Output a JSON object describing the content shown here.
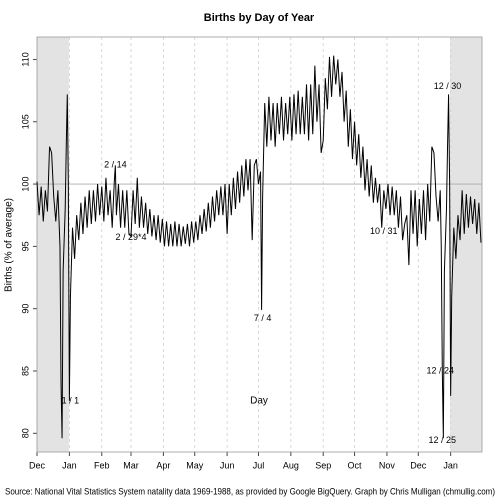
{
  "chart_data": {
    "type": "line",
    "title": "Births by Day of Year",
    "xlabel": "Day",
    "ylabel": "Births (% of average)",
    "source": "Source: National Vital Statistics System natality data 1969-1988, as provided by Google BigQuery.  Graph by Chris Mulligan (chmullig.com)",
    "color": "#000000",
    "grid": true,
    "hline": 100,
    "shaded_ranges": [
      [
        -30,
        0.5
      ],
      [
        365.5,
        396
      ]
    ],
    "xlim": [
      -30,
      396
    ],
    "ylim": [
      78.5,
      111.8
    ],
    "yticks": [
      80,
      85,
      90,
      95,
      100,
      105,
      110
    ],
    "xticks": [
      {
        "value": -30,
        "label": "Dec"
      },
      {
        "value": 1,
        "label": "Jan"
      },
      {
        "value": 32,
        "label": "Feb"
      },
      {
        "value": 60,
        "label": "Mar"
      },
      {
        "value": 91,
        "label": "Apr"
      },
      {
        "value": 121,
        "label": "May"
      },
      {
        "value": 152,
        "label": "Jun"
      },
      {
        "value": 182,
        "label": "Jul"
      },
      {
        "value": 213,
        "label": "Aug"
      },
      {
        "value": 244,
        "label": "Sep"
      },
      {
        "value": 274,
        "label": "Oct"
      },
      {
        "value": 305,
        "label": "Nov"
      },
      {
        "value": 335,
        "label": "Dec"
      },
      {
        "value": 366,
        "label": "Jan"
      }
    ],
    "x": [
      -30,
      -28,
      -26,
      -24,
      -22,
      -20,
      -18,
      -16,
      -14,
      -12,
      -10,
      -8,
      -7,
      -6,
      -5,
      -3,
      -2,
      -1,
      0,
      1,
      2,
      4,
      6,
      8,
      10,
      12,
      14,
      16,
      18,
      20,
      22,
      24,
      26,
      28,
      30,
      32,
      34,
      36,
      38,
      40,
      42,
      44,
      45,
      46,
      48,
      50,
      52,
      54,
      56,
      58,
      60,
      62,
      64,
      66,
      68,
      70,
      72,
      74,
      76,
      78,
      80,
      82,
      84,
      86,
      88,
      90,
      92,
      94,
      96,
      98,
      100,
      102,
      104,
      106,
      108,
      110,
      112,
      114,
      116,
      118,
      120,
      122,
      124,
      126,
      128,
      130,
      132,
      134,
      136,
      138,
      140,
      142,
      144,
      146,
      148,
      150,
      152,
      154,
      156,
      158,
      160,
      162,
      164,
      166,
      168,
      170,
      172,
      174,
      176,
      178,
      180,
      182,
      184,
      185,
      186,
      188,
      190,
      192,
      194,
      196,
      198,
      200,
      202,
      204,
      206,
      208,
      210,
      212,
      214,
      216,
      218,
      220,
      222,
      224,
      226,
      228,
      230,
      232,
      234,
      236,
      238,
      240,
      242,
      244,
      246,
      248,
      250,
      252,
      254,
      256,
      258,
      260,
      262,
      264,
      266,
      268,
      270,
      272,
      274,
      276,
      278,
      280,
      282,
      284,
      286,
      288,
      290,
      292,
      294,
      296,
      298,
      300,
      302,
      304,
      306,
      308,
      310,
      312,
      314,
      316,
      318,
      320,
      322,
      324,
      326,
      328,
      330,
      332,
      334,
      336,
      338,
      340,
      342,
      344,
      346,
      348,
      350,
      352,
      354,
      356,
      357,
      358,
      359,
      360,
      362,
      363,
      364,
      365,
      366,
      367,
      369,
      371,
      373,
      375,
      377,
      379,
      381,
      383,
      385,
      387,
      389,
      391,
      393,
      395
    ],
    "values": [
      100.2,
      97.5,
      99.8,
      97,
      99.5,
      97.8,
      103,
      102.5,
      99,
      97,
      99.5,
      95,
      84,
      79.6,
      93,
      98,
      103,
      107.2,
      100,
      82.6,
      91,
      96.5,
      94,
      97.5,
      95.5,
      98.5,
      96,
      99,
      96.5,
      99.5,
      96.8,
      99.5,
      97,
      100,
      97.5,
      99.8,
      97,
      100.5,
      97.5,
      99.5,
      96.5,
      100.2,
      101.5,
      97.5,
      100,
      96.5,
      99.5,
      96.5,
      99.5,
      96,
      95.8,
      99.5,
      96.8,
      100.5,
      96.5,
      99,
      96.5,
      98.5,
      96,
      98,
      95.8,
      97.5,
      95.5,
      97.5,
      95.3,
      97.2,
      95,
      97,
      95,
      96.8,
      95,
      97,
      95,
      96.8,
      95,
      96.6,
      95.2,
      96.8,
      95,
      97,
      95.3,
      97,
      95.5,
      97.5,
      96,
      98,
      96.2,
      98.5,
      96.5,
      99,
      97,
      99.5,
      97.5,
      99.8,
      97.5,
      100,
      96,
      100,
      97.5,
      100.5,
      98,
      101,
      98.5,
      101.5,
      99,
      102,
      99.5,
      102,
      95.5,
      101.5,
      102,
      100,
      101,
      89.9,
      99,
      106.5,
      103,
      107,
      103.5,
      106.5,
      103,
      106.5,
      104,
      107,
      103.5,
      106.5,
      104,
      107,
      103.5,
      107.2,
      104,
      107.5,
      104,
      107,
      104,
      108,
      103.5,
      108,
      104,
      109.5,
      105,
      108,
      102.5,
      103.5,
      108.5,
      106,
      110.2,
      107,
      110.3,
      108,
      110,
      107,
      109,
      105,
      107.5,
      103,
      106,
      102,
      105,
      101.5,
      104,
      100.5,
      103,
      99.5,
      102,
      99,
      101.5,
      98.5,
      100.5,
      98.5,
      100,
      96.5,
      99.5,
      98,
      100,
      97.5,
      99.8,
      97.5,
      99.5,
      96.5,
      99,
      95.5,
      96.8,
      97.5,
      93.5,
      99.5,
      96,
      99.5,
      95,
      98.8,
      96,
      99.5,
      95.5,
      100,
      97,
      103,
      102.5,
      99,
      97,
      99.5,
      95,
      85,
      79.6,
      93,
      98,
      103,
      107.2,
      100,
      83,
      91,
      96.5,
      94,
      97.5,
      95.5,
      99.5,
      96,
      99.2,
      96.5,
      99,
      96.8,
      98.8,
      96,
      98.5,
      95.3
    ],
    "annotations": [
      {
        "text": "1 / 1",
        "x": 2,
        "y": 82.6
      },
      {
        "text": "2 / 14",
        "x": 45,
        "y": 101.5
      },
      {
        "text": "2 / 29*4",
        "x": 60,
        "y": 95.7
      },
      {
        "text": "7 / 4",
        "x": 186,
        "y": 89.2
      },
      {
        "text": "10 / 31",
        "x": 302,
        "y": 96.2
      },
      {
        "text": "12 / 24",
        "x": 356,
        "y": 85
      },
      {
        "text": "12 / 25",
        "x": 358,
        "y": 79.4
      },
      {
        "text": "12 / 30",
        "x": 363,
        "y": 107.8
      }
    ]
  }
}
